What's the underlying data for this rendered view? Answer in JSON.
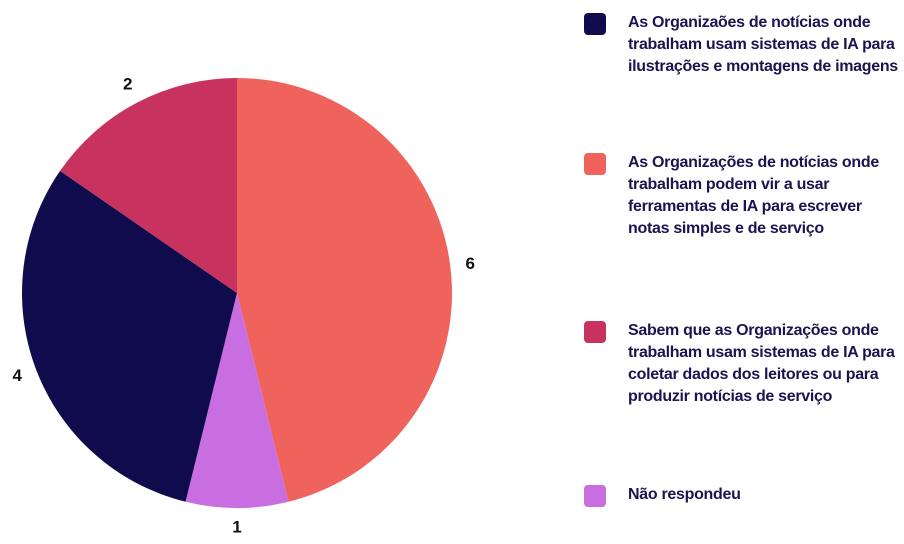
{
  "chart_data": {
    "type": "pie",
    "categories": [
      "As Organizaões de notícias onde trabalham usam sistemas de IA para ilustrações e montagens de imagens",
      "As Organizações de notícias onde trabalham podem vir a usar ferramentas de IA para escrever notas simples e de serviço",
      "Sabem que as Organizações onde trabalham usam sistemas de IA para coletar dados dos leitores ou para produzir notícias de serviço",
      "Não respondeu"
    ],
    "values": [
      4,
      6,
      2,
      1
    ],
    "colors": [
      "#100b4d",
      "#f0625c",
      "#c8325f",
      "#c86ee0"
    ]
  }
}
